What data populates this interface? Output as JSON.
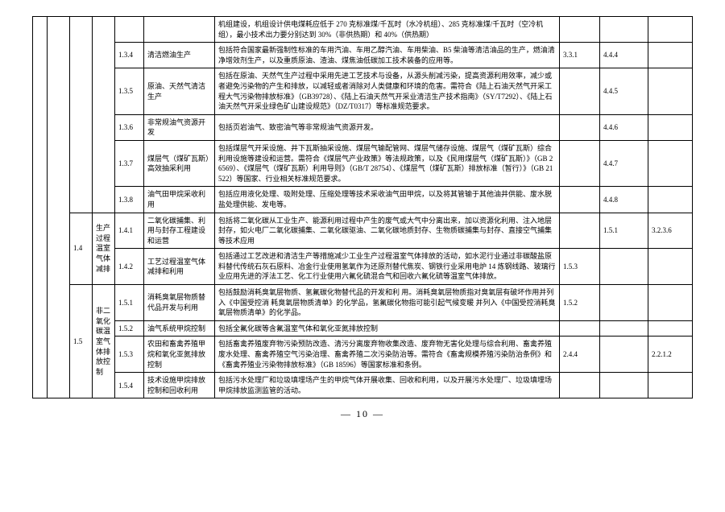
{
  "sec14": {
    "idx": "1.4",
    "cat": "生产过程温室气体减排"
  },
  "sec15": {
    "idx": "1.5",
    "cat": "非二氧化碳温室气体排放控制"
  },
  "sub141": {
    "name": "二氧化碳捕集、利用与封存工程建设和运营"
  },
  "sub151": {
    "name": "消耗臭氧层物质替代品开发与利用"
  },
  "rows": {
    "r0": {
      "desc": "机组建设，机组设计供电煤耗应低于 270 克标准煤/千瓦时（水冷机组）、285 克标准煤/千瓦时（空冷机组），最小技术出力要分别达到 30%（非供热期）和 40%（供热期）"
    },
    "r134": {
      "num": "1.3.4",
      "name": "清洁燃油生产",
      "desc": "包括符合国家最新强制性标准的车用汽油、车用乙醇汽油、车用柴油、B5 柴油等清洁油品的生产，燃油清净增效剂生产，以及重质原油、渣油、煤焦油低碳加工技术装备的应用等。",
      "ref1": "3.3.1",
      "ref2": "4.4.4"
    },
    "r135": {
      "num": "1.3.5",
      "name": "原油、天然气清洁生产",
      "desc": "包括在原油、天然气生产过程中采用先进工艺技术与设备，从源头削减污染，提高资源利用效率，减少或者避免污染物的产生和排放，以减轻或者消除对人类健康和环境的危害。需符合《陆上石油天然气开采工程大气污染物排放标准》（GB39728）、《陆上石油天然气开采业清洁生产技术指南》（SY/T7292）、《陆上石油天然气开采业绿色矿山建设规范》（DZ/T0317）等标准规范要求。",
      "ref2": "4.4.5"
    },
    "r136": {
      "num": "1.3.6",
      "name": "非常规油气资源开发",
      "desc": "包括页岩油气、致密油气等非常规油气资源开发。",
      "ref2": "4.4.6"
    },
    "r137": {
      "num": "1.3.7",
      "name": "煤层气（煤矿瓦斯）高效抽采利用",
      "desc": "包括煤层气开采设施、井下瓦斯抽采设施、煤层气输配管网、煤层气储存设施、煤层气（煤矿瓦斯）综合利用设施等建设和运营。需符合《煤层气产业政策》等法规政策，以及《民用煤层气（煤矿瓦斯）》（GB 26569）、《煤层气（煤矿瓦斯）利用导则》（GB/T 28754）、《煤层气（煤矿瓦斯）排放标准（暂行）》（GB 21522）等国家、行业相关标准规范要求。",
      "ref2": "4.4.7"
    },
    "r138": {
      "num": "1.3.8",
      "name": "油气田甲烷采收利用",
      "desc": "包括应用液化处理、吸附处理、压缩处理等技术采收油气田甲烷，以及将其管输于其他油井供能、废水脱盐处理供能、发电等。",
      "ref2": "4.4.8"
    },
    "r141": {
      "num": "1.4.1",
      "desc": "包括将二氧化碳从工业生产、能源利用过程中产生的废气或大气中分离出来，加以资源化利用、注入地层封存，如火电厂二氧化碳捕集、二氧化碳驱油、二氧化碳地质封存、生物质碳捕集与封存、直接空气捕集等技术应用",
      "ref2": "1.5.1",
      "ref3": "3.2.3.6"
    },
    "r142": {
      "num": "1.4.2",
      "name": "工艺过程温室气体减排和利用",
      "desc": "包括通过工艺改进和清洁生产等措施减少工业生产过程温室气体排放的活动，如水泥行业通过非碳酸盐原料替代传统石灰石原料、冶金行业使用氢氧作为还原剂替代焦炭、钢铁行业采用电炉 14 炼钢线路、玻璃行业应用先进的浮法工艺、化工行业使用六氟化硫混合气和回收六氟化硫等温室气体排放。",
      "ref1": "1.5.3"
    },
    "r151": {
      "num": "1.5.1",
      "desc": "包括鼓励消耗臭氧层物质、氢氟碳化物替代品的开发和利 用。消耗臭氧层物质指对臭氧层有破坏作用并列入《中国受控消 耗臭氧层物质清单》的化学品，氢氟碳化物指可能引起气候变暖 并列入《中国受控消耗臭氧层物质清单》的化学品。",
      "ref1": "1.5.2"
    },
    "r152": {
      "num": "1.5.2",
      "name": "油气系统甲烷控制",
      "desc": "包括全氟化碳等含氟温室气体和氧化亚氮排放控制"
    },
    "r153": {
      "num": "1.5.3",
      "name": "农田和畜禽养殖甲烷和氧化亚氮排放控制",
      "desc": "包括畜禽养殖废弃物污染预防改造、清污分离废弃物收集改造、废弃物无害化处理与综合利用、畜禽养殖废水处理、畜禽养殖空气污染治理、畜禽养殖二次污染防治等。需符合《畜禽规模养殖污染防治条例》和《畜禽养殖业污染物排放标准》（GB 18596）等国家标准和条例。",
      "ref1": "2.4.4",
      "ref3": "2.2.1.2"
    },
    "r154": {
      "num": "1.5.4",
      "name": "技术设施甲烷排放控制和回收利用",
      "desc": "包括污水处理厂和垃圾填埋场产生的甲烷气体开展收集、回收和利用，以及开展污水处理厂、垃圾填埋场甲烷排放监测监管的活动。"
    }
  },
  "pageNum": "— 10 —"
}
